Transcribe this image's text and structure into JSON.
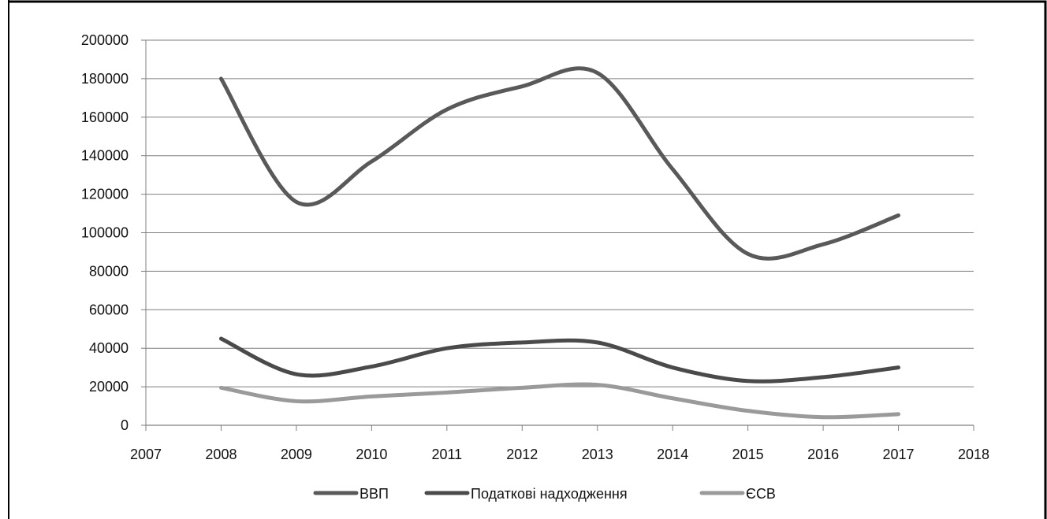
{
  "chart_data": {
    "type": "line",
    "title": "",
    "xlabel": "",
    "ylabel": "",
    "xlim": [
      2007,
      2018
    ],
    "ylim": [
      0,
      200000
    ],
    "x_ticks": [
      "2007",
      "2008",
      "2009",
      "2010",
      "2011",
      "2012",
      "2013",
      "2014",
      "2015",
      "2016",
      "2017",
      "2018"
    ],
    "y_ticks": [
      "0",
      "20000",
      "40000",
      "60000",
      "80000",
      "100000",
      "120000",
      "140000",
      "160000",
      "180000",
      "200000"
    ],
    "grid": "horizontal",
    "legend_position": "bottom",
    "x": [
      2008,
      2009,
      2010,
      2011,
      2012,
      2013,
      2014,
      2015,
      2016,
      2017
    ],
    "series": [
      {
        "name": "ВВП",
        "color": "#595959",
        "values": [
          180000,
          116000,
          137000,
          164000,
          176000,
          183000,
          133000,
          89000,
          94000,
          109000
        ]
      },
      {
        "name": "Податкові надходження",
        "color": "#4a4a4a",
        "values": [
          45000,
          26500,
          30500,
          40000,
          43000,
          43000,
          30000,
          23000,
          25000,
          30000
        ]
      },
      {
        "name": "ЄСВ",
        "color": "#9a9a9a",
        "values": [
          19500,
          12500,
          15000,
          17000,
          19500,
          21000,
          14000,
          7500,
          4200,
          5800
        ]
      }
    ]
  }
}
